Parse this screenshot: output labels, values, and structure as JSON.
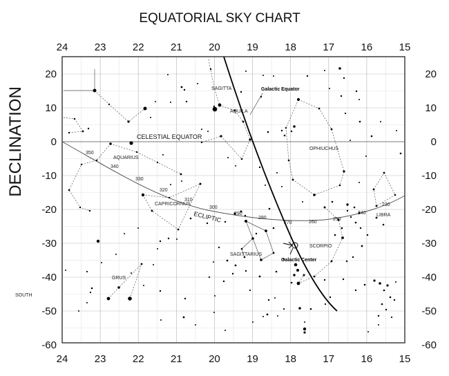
{
  "title": "EQUATORIAL SKY CHART",
  "y_axis_label": "DECLINATION",
  "south_label": "SOUTH",
  "ra_ticks": [
    "24",
    "23",
    "22",
    "21",
    "20",
    "19",
    "18",
    "17",
    "16",
    "15"
  ],
  "dec_ticks": [
    "20",
    "10",
    "0",
    "-10",
    "-20",
    "-30",
    "-40",
    "-50",
    "-60"
  ],
  "celestial_equator_label": "CELESTIAL EQUATOR",
  "ecliptic_label": "ECLIPTIC",
  "galactic_equator_label": "Galactic Equator",
  "galactic_center_label": "Galactic Center",
  "constellations": [
    "SAGITTA",
    "AQUILA",
    "AQUARIUS",
    "OPHIUCHUS",
    "CAPRICORNUS",
    "SAGITTARIUS",
    "SCORPIO",
    "LIBRA",
    "GRUS"
  ],
  "ecliptic_longitudes": [
    "350",
    "340",
    "330",
    "320",
    "310",
    "300",
    "290",
    "280",
    "270",
    "260",
    "250",
    "240",
    "230"
  ],
  "colors": {
    "ink": "#111111",
    "grid": "#cfcfcf",
    "ecliptic": "#555555"
  }
}
